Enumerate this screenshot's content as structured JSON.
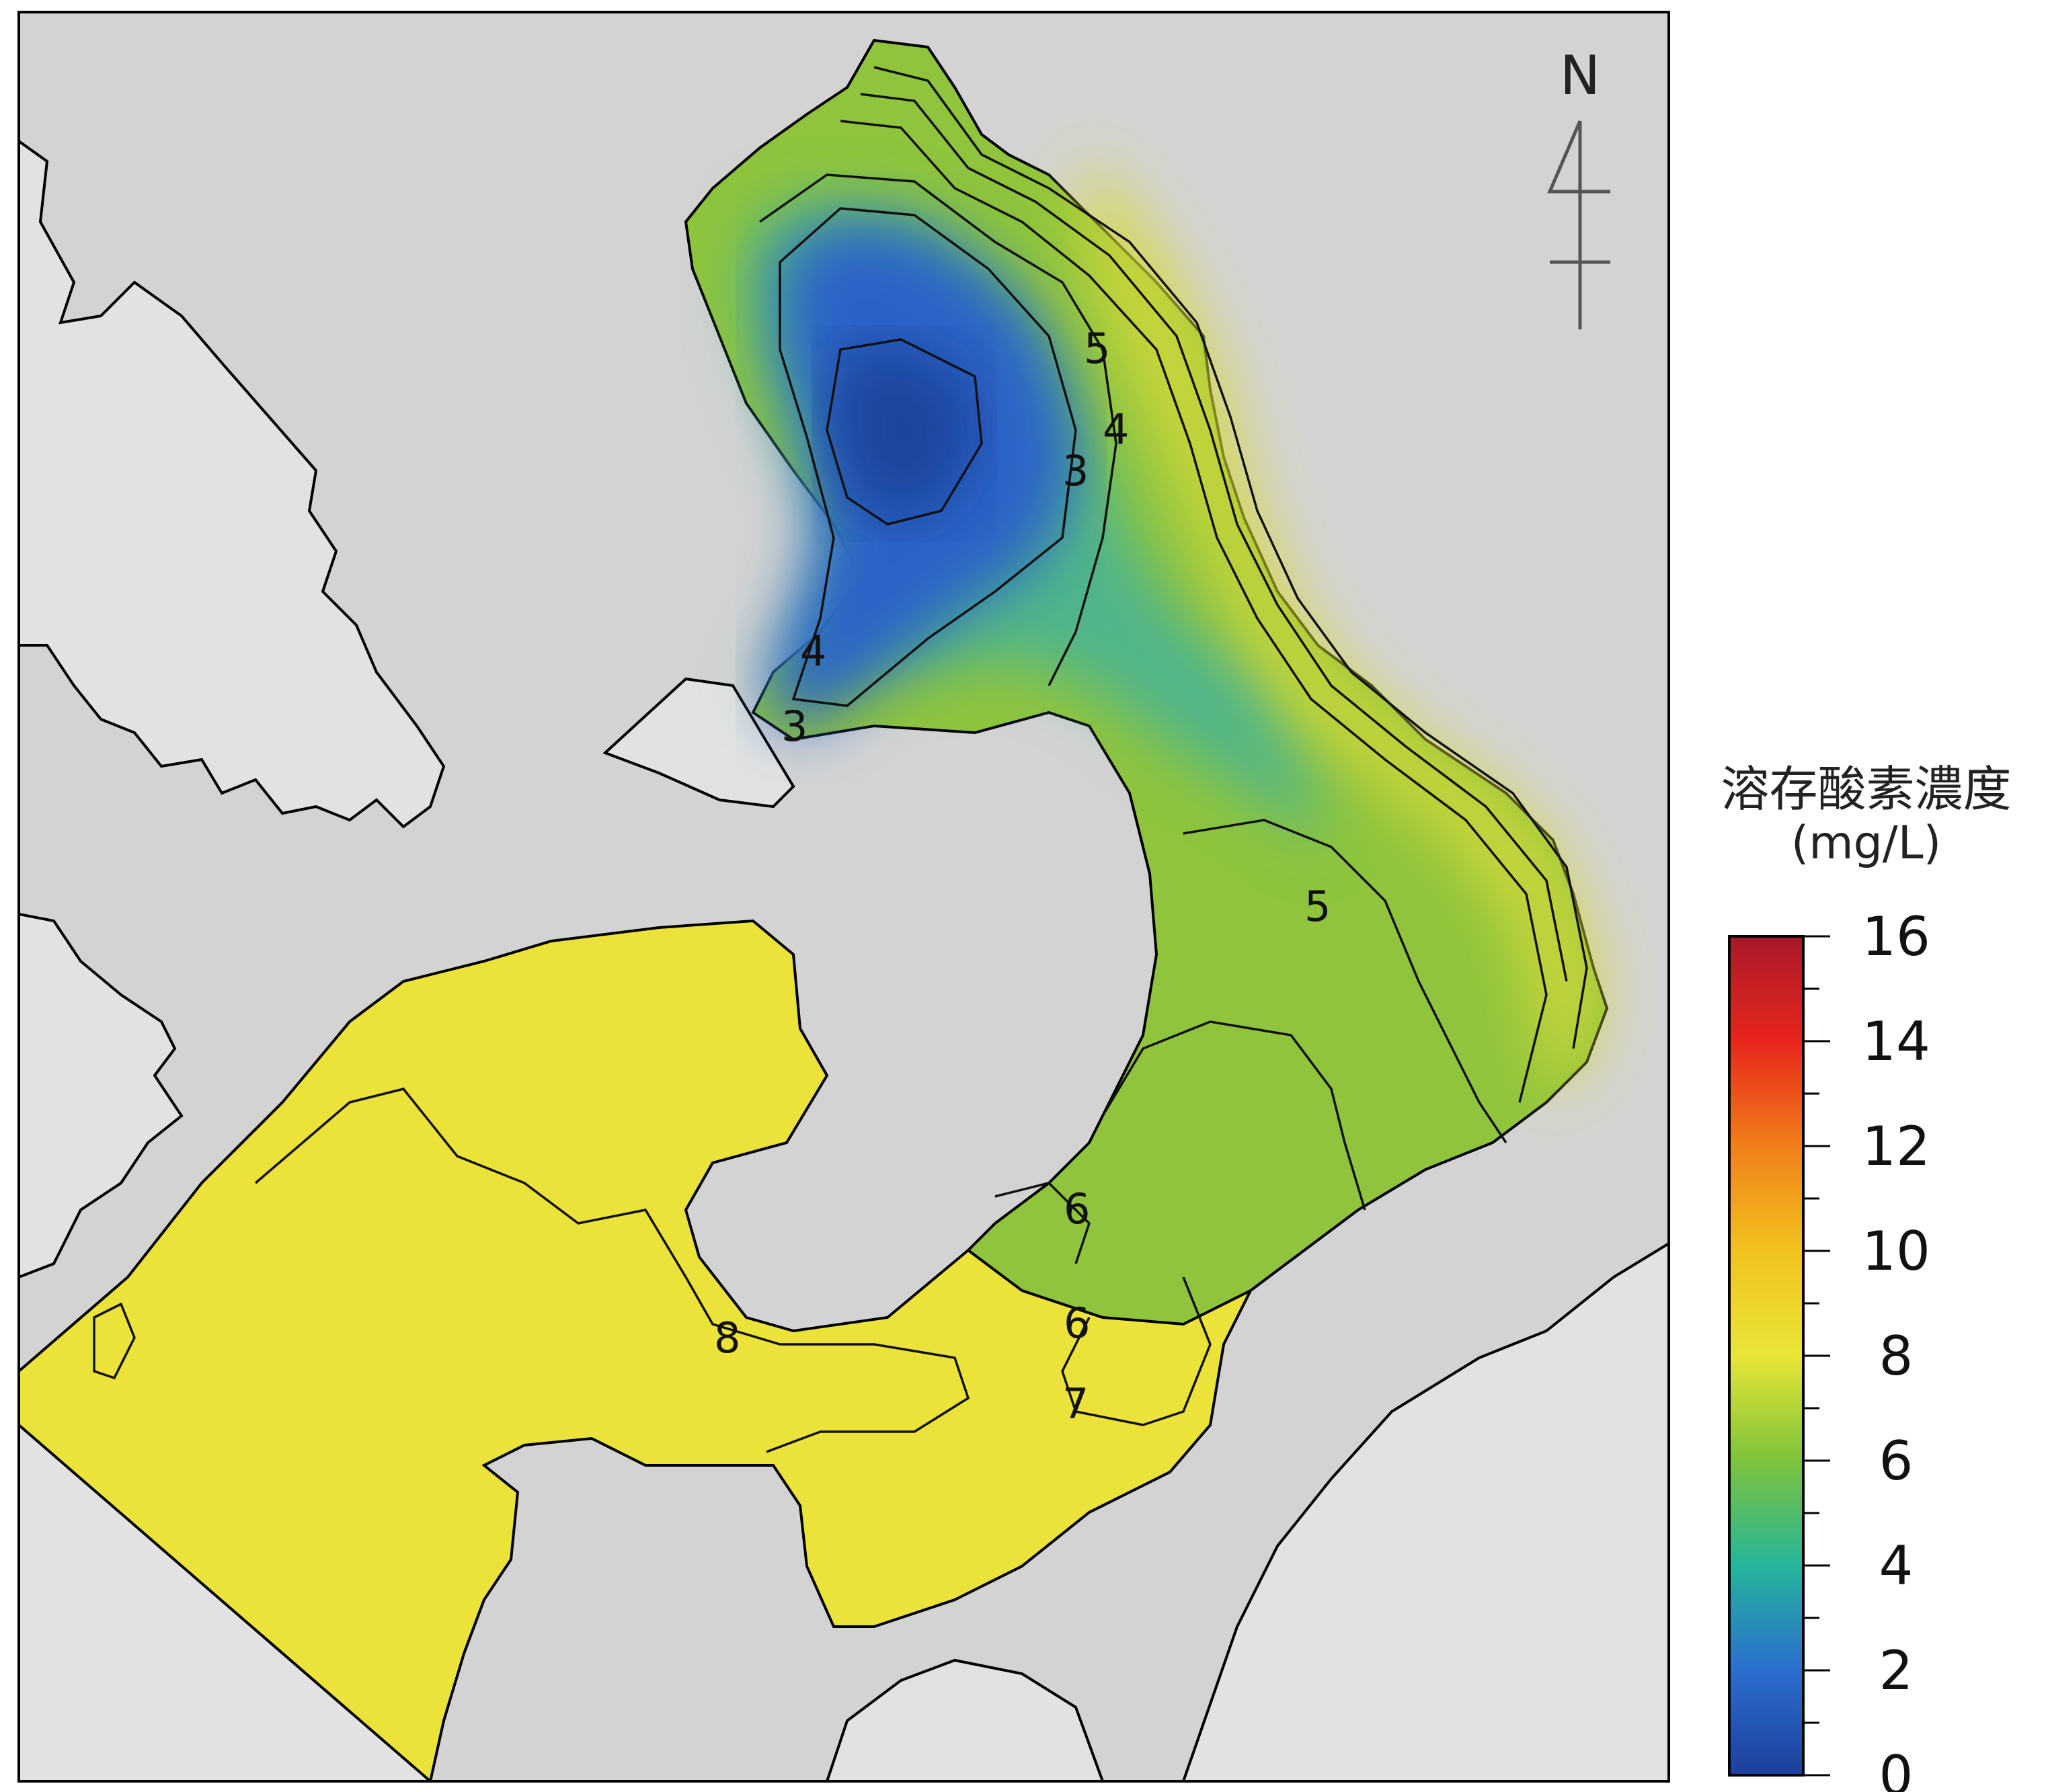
{
  "north_arrow": {
    "label": "N"
  },
  "contour_labels": [
    "5",
    "4",
    "3",
    "4",
    "3",
    "5",
    "6",
    "8",
    "6",
    "7"
  ],
  "legend": {
    "title": "溶存酸素濃度",
    "unit": "(mg/L)",
    "min": 0,
    "max": 16,
    "major_ticks": [
      "0",
      "2",
      "4",
      "6",
      "8",
      "10",
      "12",
      "14",
      "16"
    ],
    "colors": {
      "0": "#1d3f9e",
      "2": "#2b6ecf",
      "4": "#25b59a",
      "6": "#7cc33a",
      "8": "#e8e637",
      "10": "#f2c21e",
      "12": "#f07f1a",
      "14": "#e8261b",
      "16": "#a8182a"
    }
  },
  "colors": {
    "sea_background": "#d3d3d3",
    "land": "#e2e2e2",
    "frame": "#000000"
  }
}
